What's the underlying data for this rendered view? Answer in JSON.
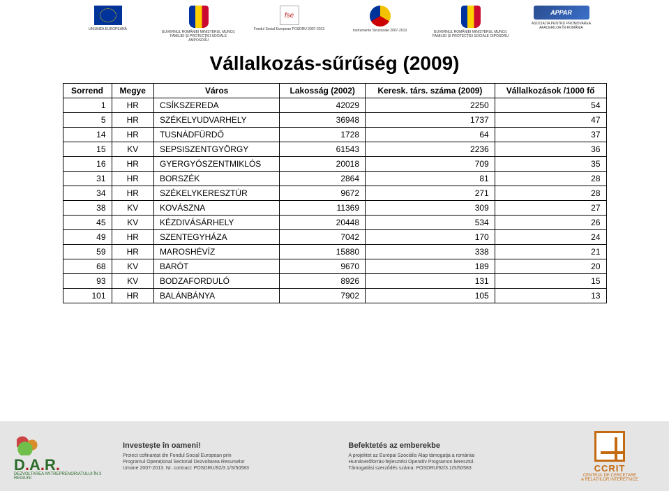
{
  "title": "Vállalkozás-sűrűség (2009)",
  "header_logos": [
    {
      "caption": "UNIUNEA EUROPEANĂ"
    },
    {
      "caption": "GUVERNUL ROMÂNIEI\nMINISTERUL MUNCII, FAMILIEI\nȘI PROTECȚIEI SOCIALE\nAMPOSDRU"
    },
    {
      "caption": "Fondul Social European\nPOSDRU 2007-2013"
    },
    {
      "caption": "Instrumente Structurale\n2007-2013"
    },
    {
      "caption": "GUVERNUL ROMÂNIEI\nMINISTERUL MUNCII, FAMILIEI\nȘI PROTECȚIEI SOCIALE\nOIPOSDRU"
    },
    {
      "caption": "ASOCIAȚIA PENTRU\nPROMOVAREA AFACERILOR\nÎN ROMÂNIA"
    }
  ],
  "fse_mark": "fse",
  "appar_mark": "APPAR",
  "table": {
    "columns": [
      "Sorrend",
      "Megye",
      "Város",
      "Lakosság (2002)",
      "Keresk. társ. száma (2009)",
      "Vállalkozások /1000 fő"
    ],
    "rows": [
      [
        "1",
        "HR",
        "CSÍKSZEREDA",
        "42029",
        "2250",
        "54"
      ],
      [
        "5",
        "HR",
        "SZÉKELYUDVARHELY",
        "36948",
        "1737",
        "47"
      ],
      [
        "14",
        "HR",
        "TUSNÁDFÜRDŐ",
        "1728",
        "64",
        "37"
      ],
      [
        "15",
        "KV",
        "SEPSISZENTGYÖRGY",
        "61543",
        "2236",
        "36"
      ],
      [
        "16",
        "HR",
        "GYERGYÓSZENTMIKLÓS",
        "20018",
        "709",
        "35"
      ],
      [
        "31",
        "HR",
        "BORSZÉK",
        "2864",
        "81",
        "28"
      ],
      [
        "34",
        "HR",
        "SZÉKELYKERESZTÚR",
        "9672",
        "271",
        "28"
      ],
      [
        "38",
        "KV",
        "KOVÁSZNA",
        "11369",
        "309",
        "27"
      ],
      [
        "45",
        "KV",
        "KÉZDIVÁSÁRHELY",
        "20448",
        "534",
        "26"
      ],
      [
        "49",
        "HR",
        "SZENTEGYHÁZA",
        "7042",
        "170",
        "24"
      ],
      [
        "59",
        "HR",
        "MAROSHÉVÍZ",
        "15880",
        "338",
        "21"
      ],
      [
        "68",
        "KV",
        "BARÓT",
        "9670",
        "189",
        "20"
      ],
      [
        "93",
        "KV",
        "BODZAFORDULÓ",
        "8926",
        "131",
        "15"
      ],
      [
        "101",
        "HR",
        "BALÁNBÁNYA",
        "7902",
        "105",
        "13"
      ]
    ],
    "col_align": [
      "num",
      "ctr",
      "txt",
      "num",
      "num",
      "num"
    ],
    "border_color": "#000000",
    "header_fontsize": 12,
    "cell_fontsize": 12,
    "background_color": "#ffffff"
  },
  "footer": {
    "dar_text": "D.A.R.",
    "dar_sub": "DEZVOLTAREA ANTREPRENORIATULUI ÎN 3 REGIUNI",
    "left_title": "Investește în oameni!",
    "left_lines": "Proiect cofinanțat din Fondul Social European prin\nProgramul Operațional Sectorial Dezvoltarea Resurselor\nUmane 2007-2013. Nr. contract: POSDRU/92/3.1/S/50583",
    "right_title": "Befektetés az emberekbe",
    "right_lines": "A projektet az Európai Szociális Alap támogatja a romániai\nHumánerőforrás-fejlesztési Operatív Programon keresztül.\nTámogatási szerződés száma: POSDRU/92/3.1/S/50583",
    "ccrit_title": "CCRIT",
    "ccrit_caption": "CENTRUL DE CERCETARE\nA RELAȚIILOR INTERETNICE"
  }
}
